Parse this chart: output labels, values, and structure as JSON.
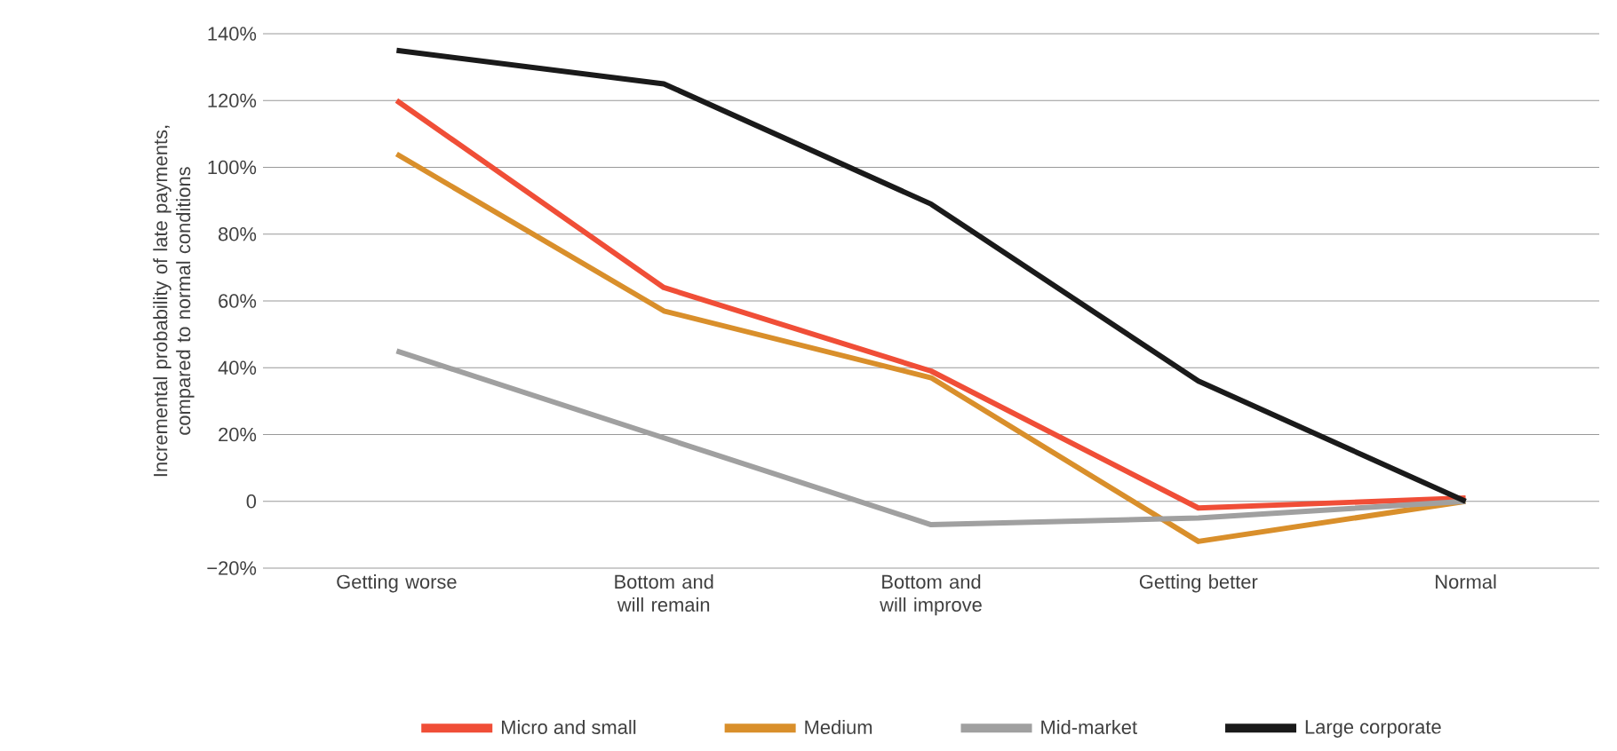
{
  "chart_data": {
    "type": "line",
    "ylabel": "Incremental probability of late payments, compared to normal conditions",
    "categories": [
      "Getting worse",
      "Bottom and will remain",
      "Bottom and will improve",
      "Getting better",
      "Normal"
    ],
    "series": [
      {
        "name": "Micro and small",
        "color": "#f04e37",
        "values": [
          120,
          64,
          39,
          -2,
          1
        ]
      },
      {
        "name": "Medium",
        "color": "#d98f2b",
        "values": [
          104,
          57,
          37,
          -12,
          0
        ]
      },
      {
        "name": "Mid-market",
        "color": "#a0a0a0",
        "values": [
          45,
          19,
          -7,
          -5,
          0
        ]
      },
      {
        "name": "Large corporate",
        "color": "#1a1a1a",
        "values": [
          135,
          125,
          89,
          36,
          0
        ]
      }
    ],
    "ylim": [
      -20,
      140
    ],
    "yticks": [
      {
        "value": -20,
        "label": "−20%"
      },
      {
        "value": 0,
        "label": "0"
      },
      {
        "value": 20,
        "label": "20%"
      },
      {
        "value": 40,
        "label": "40%"
      },
      {
        "value": 60,
        "label": "60%"
      },
      {
        "value": 80,
        "label": "80%"
      },
      {
        "value": 100,
        "label": "100%"
      },
      {
        "value": 120,
        "label": "120%"
      },
      {
        "value": 140,
        "label": "140%"
      }
    ],
    "grid": "y",
    "legend": "bottom",
    "marker": "none",
    "line_style": "solid"
  }
}
